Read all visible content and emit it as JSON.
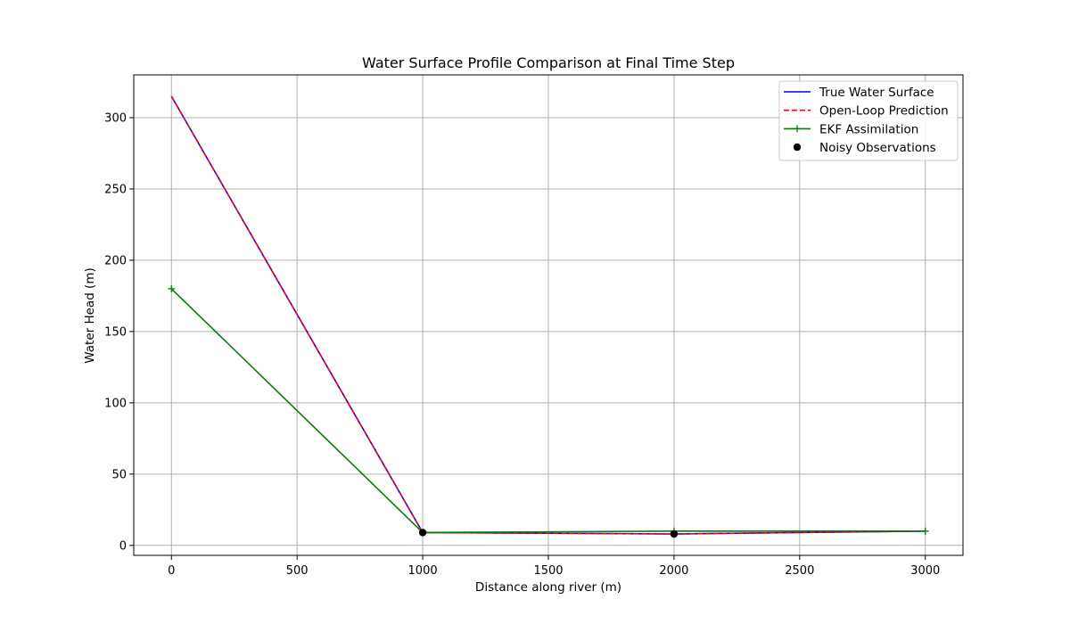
{
  "chart_data": {
    "type": "line",
    "title": "Water Surface Profile Comparison at Final Time Step",
    "xlabel": "Distance along river (m)",
    "ylabel": "Water Head (m)",
    "xlim": [
      -150,
      3150
    ],
    "ylim": [
      -7,
      330
    ],
    "xticks": [
      0,
      500,
      1000,
      1500,
      2000,
      2500,
      3000
    ],
    "yticks": [
      0,
      50,
      100,
      150,
      200,
      250,
      300
    ],
    "grid": true,
    "legend_position": "top-right",
    "series": [
      {
        "name": "True Water Surface",
        "style": "solid",
        "color": "#0000ff",
        "x": [
          0,
          1000,
          2000,
          3000
        ],
        "y": [
          315,
          9,
          8,
          10
        ]
      },
      {
        "name": "Open-Loop Prediction",
        "style": "dashed",
        "color": "#ff0000",
        "x": [
          0,
          1000,
          2000,
          3000
        ],
        "y": [
          315,
          9,
          8,
          10
        ]
      },
      {
        "name": "EKF Assimilation",
        "style": "solid-plus-marker",
        "color": "#008000",
        "x": [
          0,
          1000,
          2000,
          3000
        ],
        "y": [
          180,
          9,
          10,
          10
        ]
      },
      {
        "name": "Noisy Observations",
        "style": "marker-dot",
        "color": "#000000",
        "x": [
          1000,
          2000
        ],
        "y": [
          9,
          8
        ]
      }
    ]
  }
}
